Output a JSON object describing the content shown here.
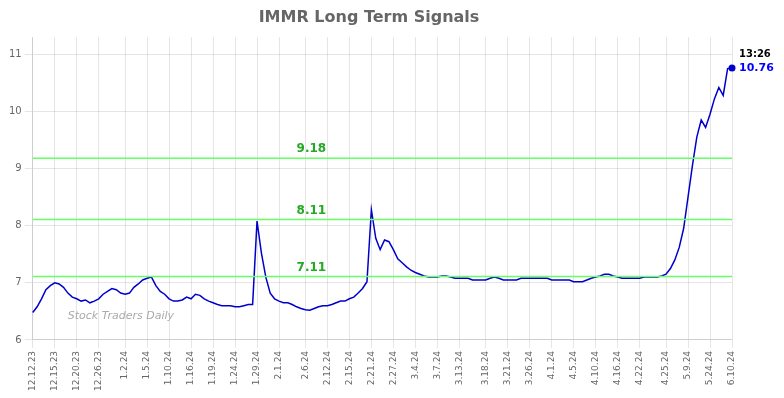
{
  "chart_data": {
    "type": "line",
    "title": "IMMR Long Term Signals",
    "color": "#0000cc",
    "grid": true,
    "ylim": [
      6.0,
      11.3
    ],
    "yticks": [
      6,
      7,
      8,
      9,
      10,
      11
    ],
    "categories": [
      "12.12.23",
      null,
      null,
      null,
      null,
      "12.15.23",
      null,
      null,
      null,
      null,
      "12.20.23",
      null,
      null,
      null,
      null,
      "12.26.23",
      null,
      null,
      null,
      null,
      null,
      "1.2.24",
      null,
      null,
      null,
      null,
      "1.5.24",
      null,
      null,
      null,
      null,
      "1.10.24",
      null,
      null,
      null,
      null,
      "1.16.24",
      null,
      null,
      null,
      null,
      "1.19.24",
      null,
      null,
      null,
      null,
      "1.24.24",
      null,
      null,
      null,
      null,
      "1.29.24",
      null,
      null,
      null,
      null,
      "2.1.24",
      null,
      null,
      null,
      null,
      null,
      "2.6.24",
      null,
      null,
      null,
      null,
      "2.12.24",
      null,
      null,
      null,
      null,
      "2.15.24",
      null,
      null,
      null,
      null,
      "2.21.24",
      null,
      null,
      null,
      null,
      "2.27.24",
      null,
      null,
      null,
      null,
      "3.4.24",
      null,
      null,
      null,
      null,
      "3.7.24",
      null,
      null,
      null,
      null,
      "3.13.24",
      null,
      null,
      null,
      null,
      null,
      "3.18.24",
      null,
      null,
      null,
      null,
      "3.21.24",
      null,
      null,
      null,
      null,
      "3.26.24",
      null,
      null,
      null,
      null,
      "4.1.24",
      null,
      null,
      null,
      null,
      "4.5.24",
      null,
      null,
      null,
      null,
      "4.10.24",
      null,
      null,
      null,
      null,
      "4.16.24",
      null,
      null,
      null,
      null,
      "4.22.24",
      null,
      null,
      null,
      null,
      null,
      "4.25.24",
      null,
      null,
      null,
      null,
      "5.9.24",
      null,
      null,
      null,
      null,
      "5.24.24",
      null,
      null,
      null,
      null,
      "6.10.24"
    ],
    "values": [
      6.48,
      6.58,
      6.72,
      6.88,
      6.95,
      7.0,
      6.98,
      6.92,
      6.82,
      6.75,
      6.72,
      6.68,
      6.7,
      6.65,
      6.68,
      6.72,
      6.8,
      6.85,
      6.9,
      6.88,
      6.82,
      6.8,
      6.82,
      6.92,
      6.98,
      7.05,
      7.08,
      7.1,
      6.95,
      6.85,
      6.8,
      6.72,
      6.68,
      6.68,
      6.7,
      6.75,
      6.72,
      6.8,
      6.78,
      6.72,
      6.68,
      6.65,
      6.62,
      6.6,
      6.6,
      6.6,
      6.58,
      6.58,
      6.6,
      6.62,
      6.62,
      8.08,
      7.52,
      7.1,
      6.82,
      6.72,
      6.68,
      6.65,
      6.65,
      6.62,
      6.58,
      6.55,
      6.53,
      6.52,
      6.55,
      6.58,
      6.6,
      6.6,
      6.62,
      6.65,
      6.68,
      6.68,
      6.72,
      6.75,
      6.82,
      6.9,
      7.02,
      8.28,
      7.78,
      7.58,
      7.75,
      7.72,
      7.58,
      7.42,
      7.35,
      7.28,
      7.22,
      7.18,
      7.15,
      7.12,
      7.1,
      7.1,
      7.1,
      7.12,
      7.12,
      7.1,
      7.08,
      7.08,
      7.08,
      7.08,
      7.05,
      7.05,
      7.05,
      7.05,
      7.08,
      7.1,
      7.08,
      7.05,
      7.05,
      7.05,
      7.05,
      7.08,
      7.08,
      7.08,
      7.08,
      7.08,
      7.08,
      7.08,
      7.05,
      7.05,
      7.05,
      7.05,
      7.05,
      7.02,
      7.02,
      7.02,
      7.05,
      7.08,
      7.1,
      7.12,
      7.15,
      7.15,
      7.12,
      7.1,
      7.08,
      7.08,
      7.08,
      7.08,
      7.08,
      7.1,
      7.1,
      7.1,
      7.1,
      7.12,
      7.15,
      7.25,
      7.4,
      7.62,
      7.95,
      8.5,
      9.05,
      9.55,
      9.85,
      9.72,
      9.95,
      10.22,
      10.42,
      10.28,
      10.75,
      10.76
    ],
    "annotations": [
      {
        "type": "hline",
        "y": 7.11,
        "text": "7.11",
        "color": "#66ff66",
        "text_color": "#22aa22"
      },
      {
        "type": "hline",
        "y": 8.11,
        "text": "8.11",
        "color": "#66ff66",
        "text_color": "#22aa22"
      },
      {
        "type": "hline",
        "y": 9.18,
        "text": "9.18",
        "color": "#66ff66",
        "text_color": "#22aa22"
      },
      {
        "type": "watermark",
        "text": "Stock Traders Daily",
        "color": "#aaaaaa"
      },
      {
        "type": "last_label",
        "text": "13:26",
        "color": "#000000"
      },
      {
        "type": "last_value",
        "y": 10.76,
        "text": "10.76",
        "color": "#0000ff",
        "marker": "circle"
      }
    ]
  }
}
